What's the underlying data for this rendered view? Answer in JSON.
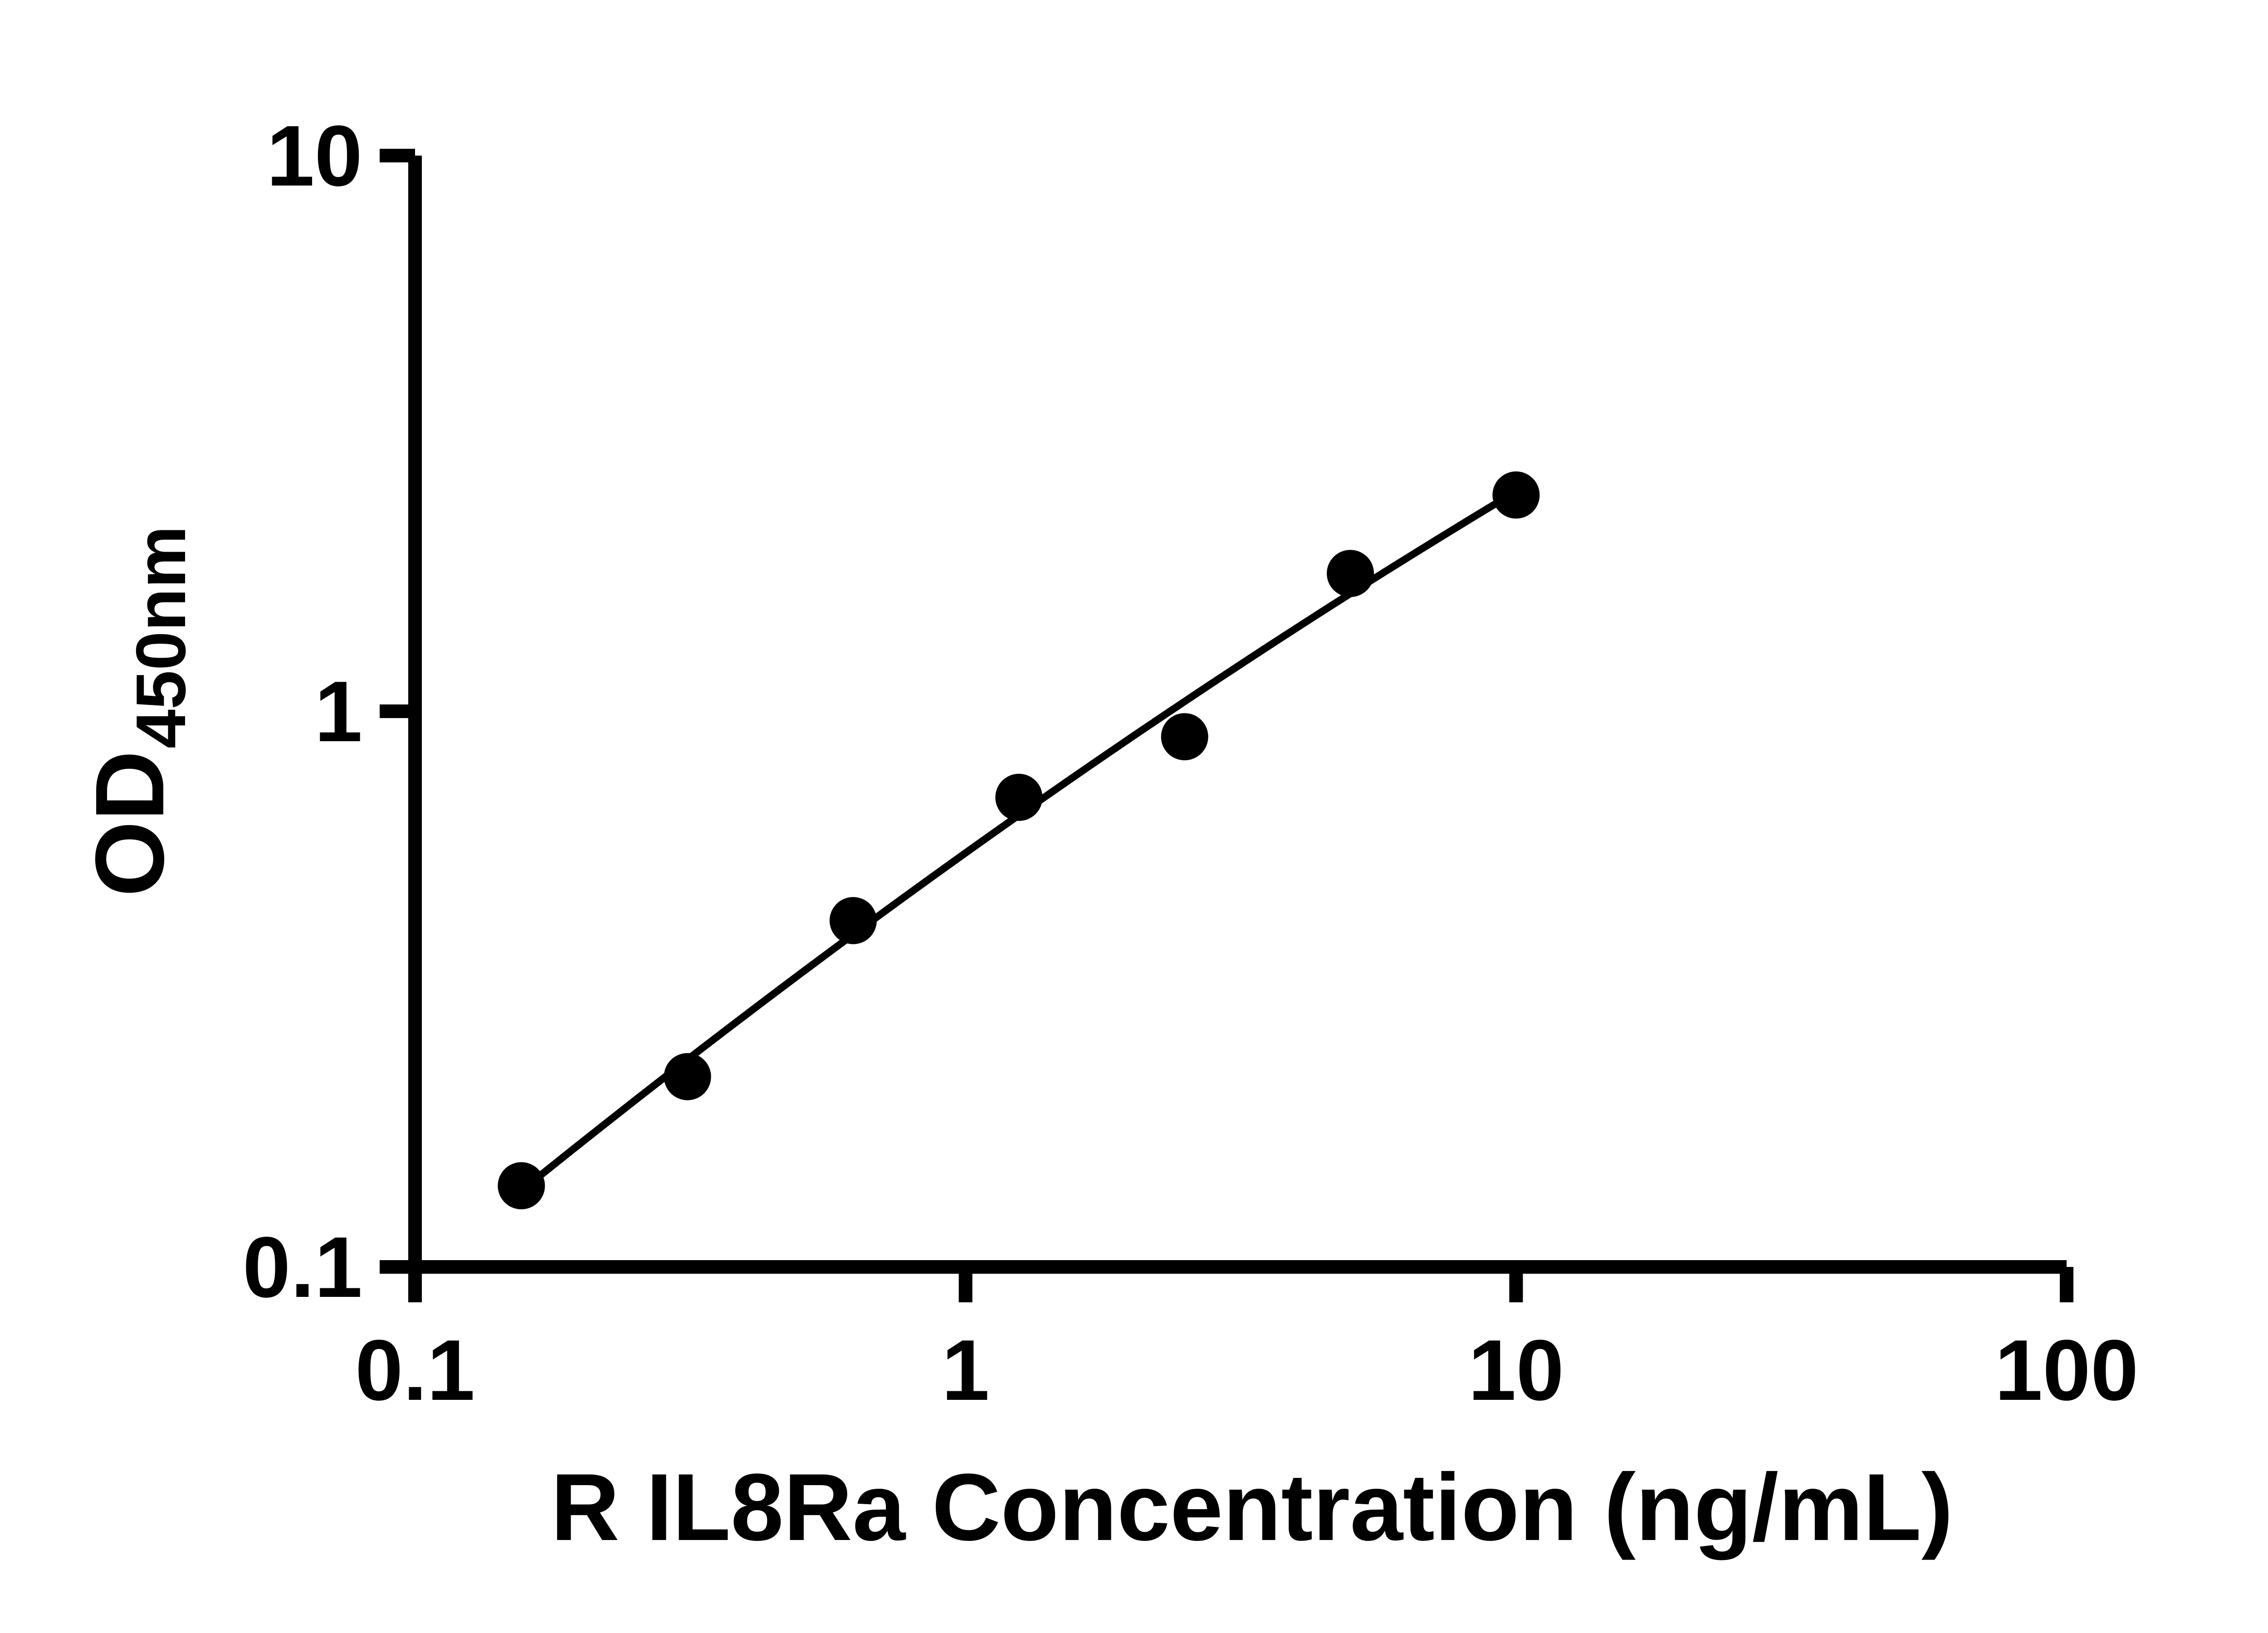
{
  "figure": {
    "background_color": "#ffffff",
    "axis_color": "#000000"
  },
  "chart_data": {
    "type": "scatter",
    "title": "",
    "xlabel": "R IL8Ra Concentration (ng/mL)",
    "ylabel": "OD",
    "ylabel_subscript": "450nm",
    "x_scale": "log",
    "y_scale": "log",
    "xlim": [
      0.1,
      100
    ],
    "ylim": [
      0.1,
      10
    ],
    "grid": false,
    "legend": null,
    "x_ticks": [
      {
        "value": 0.1,
        "label": "0.1"
      },
      {
        "value": 1,
        "label": "1"
      },
      {
        "value": 10,
        "label": "10"
      },
      {
        "value": 100,
        "label": "100"
      }
    ],
    "y_ticks": [
      {
        "value": 0.1,
        "label": "0.1"
      },
      {
        "value": 1,
        "label": "1"
      },
      {
        "value": 10,
        "label": "10"
      }
    ],
    "series": [
      {
        "marker": "circle",
        "color": "#000000",
        "points": [
          {
            "x": 0.156,
            "y": 0.14
          },
          {
            "x": 0.3125,
            "y": 0.22
          },
          {
            "x": 0.625,
            "y": 0.42
          },
          {
            "x": 1.25,
            "y": 0.7
          },
          {
            "x": 2.5,
            "y": 0.9
          },
          {
            "x": 5,
            "y": 1.77
          },
          {
            "x": 10,
            "y": 2.45
          }
        ]
      }
    ],
    "fit_curve": {
      "type": "quadratic_in_loglog",
      "description": "log10(y) = a + b*log10(x) + c*log10(x)^2",
      "coefficients": {
        "a": -0.2549,
        "b": 0.7075,
        "c": -0.0569
      },
      "x_range": [
        0.156,
        10
      ]
    }
  }
}
